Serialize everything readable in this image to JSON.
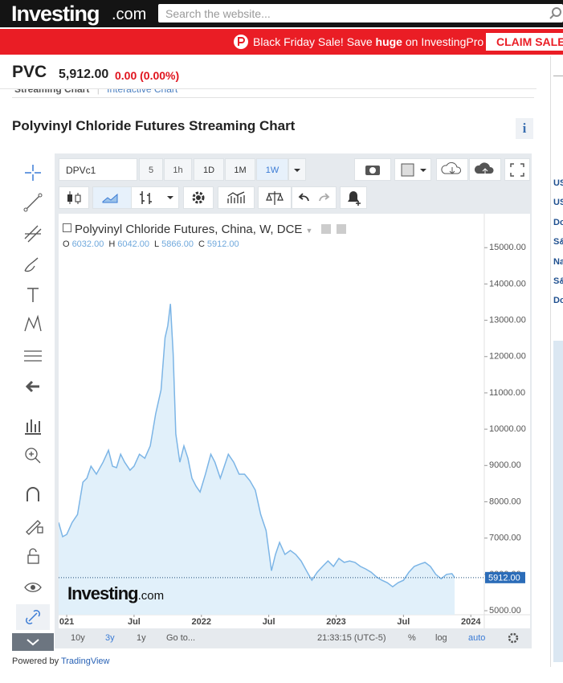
{
  "header": {
    "logo": "Investing",
    "logo_suffix": ".com",
    "search_placeholder": "Search the website..."
  },
  "banner": {
    "text": "Black Friday Sale! Save",
    "highlight": "huge",
    "text_end": "on InvestingPro",
    "button": "CLAIM SALE"
  },
  "quote": {
    "symbol": "PVC",
    "price": "5,912.00",
    "change": "0.00 (0.00%)"
  },
  "tabs": [
    "Streaming Chart",
    "Interactive Chart"
  ],
  "page_title": "Polyvinyl Chloride Futures Streaming Chart",
  "info_button": "i",
  "toolbar": {
    "symbol": "DPVc1",
    "intervals": [
      "5",
      "1h",
      "1D",
      "1M",
      "1W"
    ]
  },
  "legend": {
    "title": "Polyvinyl Chloride Futures, China, W, DCE",
    "ohlc": [
      {
        "key": "O",
        "value": "6032.00"
      },
      {
        "key": "H",
        "value": "6042.00"
      },
      {
        "key": "L",
        "value": "5866.00"
      },
      {
        "key": "C",
        "value": "5912.00"
      }
    ]
  },
  "watermark": {
    "brand": "Investing",
    "suffix": ".com"
  },
  "bottom_bar": {
    "ranges": [
      "10y",
      "3y",
      "1y"
    ],
    "goto": "Go to...",
    "time": "21:33:15 (UTC-5)",
    "options": [
      "%",
      "log",
      "auto"
    ]
  },
  "footer": {
    "text": "Powered by",
    "link": "TradingView"
  },
  "sidebar": [
    "US",
    "US",
    "Do",
    "S&",
    "Na",
    "S&",
    "Do"
  ],
  "chart_data": {
    "type": "area",
    "color": "#7cb5e6",
    "fill": "#e1f0fa",
    "x": [
      2020.94,
      2020.97,
      2021.0,
      2021.04,
      2021.08,
      2021.12,
      2021.15,
      2021.18,
      2021.22,
      2021.27,
      2021.31,
      2021.34,
      2021.37,
      2021.4,
      2021.43,
      2021.47,
      2021.5,
      2021.54,
      2021.58,
      2021.62,
      2021.66,
      2021.7,
      2021.73,
      2021.75,
      2021.77,
      2021.79,
      2021.81,
      2021.84,
      2021.87,
      2021.9,
      2021.93,
      2021.96,
      2021.99,
      2022.03,
      2022.07,
      2022.1,
      2022.14,
      2022.17,
      2022.2,
      2022.24,
      2022.28,
      2022.32,
      2022.36,
      2022.4,
      2022.44,
      2022.48,
      2022.52,
      2022.55,
      2022.58,
      2022.62,
      2022.66,
      2022.7,
      2022.74,
      2022.78,
      2022.82,
      2022.86,
      2022.9,
      2022.94,
      2022.98,
      2023.02,
      2023.06,
      2023.1,
      2023.14,
      2023.18,
      2023.22,
      2023.26,
      2023.3,
      2023.34,
      2023.38,
      2023.42,
      2023.46,
      2023.5,
      2023.54,
      2023.58,
      2023.62,
      2023.66,
      2023.7,
      2023.74,
      2023.78,
      2023.82,
      2023.86,
      2023.88
    ],
    "values": [
      7430,
      7040,
      7100,
      7430,
      7650,
      8540,
      8650,
      8980,
      8760,
      9090,
      9420,
      8980,
      8940,
      9310,
      9090,
      8870,
      8980,
      9310,
      9200,
      9540,
      10420,
      11080,
      12520,
      12850,
      13450,
      12080,
      9870,
      9090,
      9540,
      9200,
      8650,
      8430,
      8270,
      8760,
      9310,
      9090,
      8650,
      8980,
      9310,
      9090,
      8760,
      8760,
      8580,
      8320,
      7650,
      7210,
      6100,
      6550,
      6880,
      6550,
      6660,
      6550,
      6370,
      6100,
      5840,
      6060,
      6220,
      6370,
      6220,
      6440,
      6330,
      6370,
      6330,
      6220,
      6150,
      6060,
      5930,
      5840,
      5770,
      5660,
      5770,
      5840,
      6060,
      6220,
      6280,
      6330,
      6220,
      6000,
      5880,
      6000,
      6020,
      5912
    ],
    "xlim": [
      2020.94,
      2024.1
    ],
    "xticks": [
      {
        "value": 2021,
        "label": "021"
      },
      {
        "value": 2021.5,
        "label": "Jul"
      },
      2022,
      {
        "value": 2022.5,
        "label": "Jul"
      },
      2023,
      {
        "value": 2023.5,
        "label": "Jul"
      },
      2024
    ],
    "ylim": [
      4890,
      15890
    ],
    "yticks": [
      {
        "value": 5000,
        "label": "5000.00"
      },
      {
        "value": 6000,
        "label": "6000.00"
      },
      {
        "value": 7000,
        "label": "7000.00"
      },
      {
        "value": 8000,
        "label": "8000.00"
      },
      {
        "value": 9000,
        "label": "9000.00"
      },
      {
        "value": 10000,
        "label": "10000.00"
      },
      {
        "value": 11000,
        "label": "11000.00"
      },
      {
        "value": 12000,
        "label": "12000.00"
      },
      {
        "value": 13000,
        "label": "13000.00"
      },
      {
        "value": 14000,
        "label": "14000.00"
      },
      {
        "value": 15000,
        "label": "15000.00"
      }
    ],
    "price_line": {
      "value": 5912,
      "label": "5912.00"
    }
  }
}
